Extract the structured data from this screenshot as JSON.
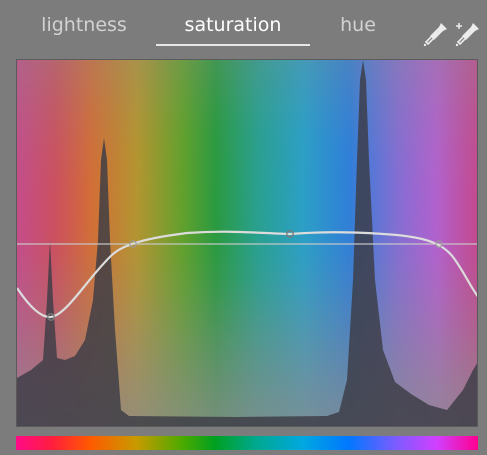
{
  "tabs": [
    {
      "label": "lightness",
      "active": false
    },
    {
      "label": "saturation",
      "active": true
    },
    {
      "label": "hue",
      "active": false
    }
  ],
  "toolbar": {
    "icons": [
      "color-picker-icon",
      "color-picker-area-icon"
    ]
  },
  "colors": {
    "panel_bg": "#7c7c7c",
    "active_tab_text": "#ffffff",
    "inactive_tab_text": "#d2d2d2",
    "curve": "#dcdcdc",
    "histogram": "#3c3c46"
  }
}
